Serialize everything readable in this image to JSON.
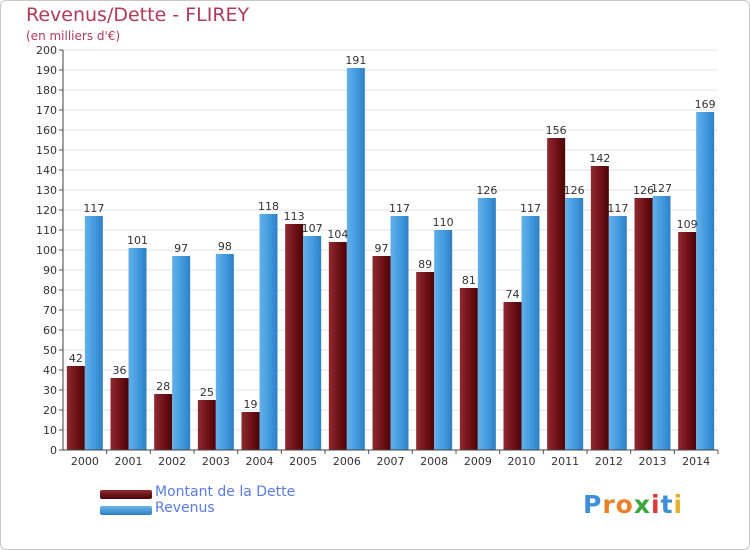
{
  "title": "Revenus/Dette - FLIREY",
  "subtitle": "(en milliers d'€)",
  "colors": {
    "debt": "#6b0f14",
    "revenue": "#3f97db",
    "title": "#b03a5a",
    "legend_text": "#5a7be0"
  },
  "legend": [
    {
      "label": "Montant de la Dette",
      "color": "#6b0f14"
    },
    {
      "label": "Revenus",
      "color": "#3f97db"
    }
  ],
  "logo": {
    "text": "Proxiti"
  },
  "chart_data": {
    "type": "bar",
    "categories": [
      "2000",
      "2001",
      "2002",
      "2003",
      "2004",
      "2005",
      "2006",
      "2007",
      "2008",
      "2009",
      "2010",
      "2011",
      "2012",
      "2013",
      "2014"
    ],
    "series": [
      {
        "name": "Montant de la Dette",
        "values": [
          42,
          36,
          28,
          25,
          19,
          113,
          104,
          97,
          89,
          81,
          74,
          156,
          142,
          126,
          109
        ]
      },
      {
        "name": "Revenus",
        "values": [
          117,
          101,
          97,
          98,
          118,
          107,
          191,
          117,
          110,
          126,
          117,
          126,
          117,
          127,
          169
        ]
      }
    ],
    "ylim": [
      0,
      200
    ],
    "ytick_step": 10,
    "grid": true,
    "legend_position": "bottom-left"
  }
}
